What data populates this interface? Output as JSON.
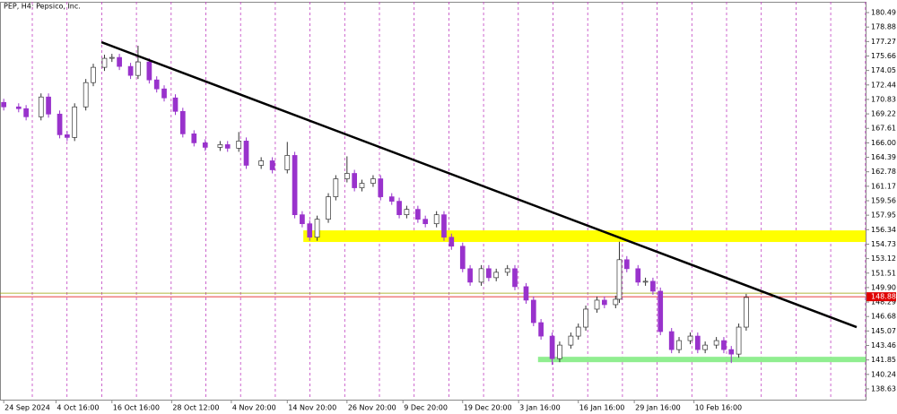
{
  "chart_data": {
    "type": "candlestick",
    "title": "PEP, H4: Pepsico, Inc.",
    "x": [
      0,
      4,
      6,
      10,
      12,
      15,
      17,
      19,
      22,
      24,
      27,
      29,
      31,
      34,
      36,
      39,
      41,
      43,
      46,
      48,
      51,
      54,
      58,
      60,
      63,
      65,
      69,
      72,
      76,
      78,
      80,
      82,
      84,
      87,
      89,
      92,
      94,
      96,
      99,
      101,
      104,
      106,
      108,
      111,
      113,
      116,
      118,
      120,
      123,
      125,
      128,
      130,
      132,
      135,
      137,
      140,
      142,
      144,
      147,
      149,
      152,
      154,
      156,
      159,
      161,
      164,
      165,
      167,
      170,
      172,
      174,
      176,
      179,
      181,
      184,
      186,
      188,
      191,
      193,
      195,
      197,
      199
    ],
    "open": [
      170.5,
      170.0,
      169.8,
      168.9,
      171.1,
      169.2,
      166.9,
      166.6,
      170.0,
      172.7,
      174.4,
      175.4,
      175.5,
      174.5,
      173.5,
      175.0,
      173.0,
      172.0,
      171.0,
      169.5,
      167.0,
      166.0,
      165.5,
      165.8,
      165.4,
      166.2,
      163.5,
      164.0,
      163.0,
      164.6,
      158.0,
      157.0,
      155.5,
      157.5,
      160.0,
      162.0,
      162.6,
      161.0,
      161.5,
      162.0,
      160.0,
      159.5,
      158.0,
      158.6,
      157.5,
      157.0,
      158.0,
      155.5,
      154.5,
      152.0,
      150.5,
      152.0,
      151.0,
      151.6,
      152.0,
      150.0,
      148.5,
      146.0,
      144.5,
      142.0,
      143.5,
      144.5,
      145.5,
      147.5,
      148.5,
      148.0,
      148.6,
      153.0,
      152.0,
      150.5,
      150.6,
      149.5,
      145.0,
      143.0,
      144.0,
      144.5,
      143.0,
      143.5,
      144.0,
      143.0,
      142.5,
      145.5
    ],
    "high": [
      170.9,
      170.4,
      170.2,
      171.5,
      171.5,
      169.6,
      167.3,
      170.4,
      173.1,
      174.8,
      175.8,
      175.9,
      175.9,
      174.9,
      176.8,
      175.4,
      173.4,
      172.4,
      171.4,
      169.9,
      167.4,
      166.4,
      166.2,
      166.2,
      167.2,
      166.6,
      164.4,
      164.4,
      166.1,
      165.0,
      158.4,
      157.4,
      157.9,
      160.4,
      162.4,
      164.5,
      163.0,
      161.9,
      162.4,
      162.4,
      160.4,
      159.9,
      159.0,
      159.0,
      157.9,
      158.4,
      158.4,
      155.9,
      154.9,
      152.4,
      152.4,
      152.4,
      152.0,
      152.4,
      152.4,
      150.4,
      148.9,
      146.4,
      144.9,
      143.9,
      144.9,
      145.9,
      147.9,
      148.9,
      148.9,
      149.0,
      155.0,
      153.4,
      152.4,
      151.0,
      151.0,
      149.9,
      145.4,
      144.4,
      144.9,
      144.9,
      143.9,
      144.4,
      144.4,
      143.4,
      145.9,
      149.2
    ],
    "low": [
      169.6,
      169.4,
      168.5,
      168.5,
      168.8,
      166.5,
      166.2,
      166.2,
      169.6,
      172.3,
      174.0,
      175.0,
      174.1,
      173.1,
      173.1,
      172.6,
      171.6,
      170.6,
      169.1,
      166.6,
      165.6,
      165.1,
      165.1,
      165.0,
      165.0,
      163.1,
      163.1,
      162.6,
      162.6,
      157.6,
      156.6,
      155.1,
      155.1,
      157.1,
      159.6,
      161.6,
      160.6,
      160.6,
      161.1,
      159.6,
      159.1,
      157.6,
      157.6,
      157.1,
      156.6,
      156.6,
      155.1,
      154.1,
      151.6,
      150.1,
      150.1,
      150.6,
      150.6,
      151.2,
      149.6,
      148.1,
      145.6,
      144.1,
      141.3,
      141.6,
      143.1,
      144.1,
      145.1,
      147.1,
      147.6,
      147.6,
      148.2,
      151.6,
      150.1,
      150.1,
      149.1,
      144.6,
      142.6,
      142.6,
      143.6,
      142.6,
      142.6,
      143.1,
      142.6,
      141.5,
      142.1,
      145.1
    ],
    "close": [
      170.0,
      169.8,
      168.9,
      171.1,
      169.2,
      166.9,
      166.6,
      170.0,
      172.7,
      174.4,
      175.4,
      175.5,
      174.5,
      173.5,
      175.0,
      173.0,
      172.0,
      171.0,
      169.5,
      167.0,
      166.0,
      165.5,
      165.8,
      165.4,
      166.2,
      163.5,
      164.0,
      163.0,
      164.6,
      158.0,
      157.0,
      155.5,
      157.5,
      160.0,
      162.0,
      162.6,
      161.0,
      161.5,
      162.0,
      160.0,
      159.5,
      158.0,
      158.6,
      157.5,
      157.0,
      158.0,
      155.5,
      154.5,
      152.0,
      150.5,
      152.0,
      151.0,
      151.6,
      152.0,
      150.0,
      148.5,
      146.0,
      144.5,
      142.0,
      143.5,
      144.5,
      145.5,
      147.5,
      148.5,
      148.0,
      148.6,
      153.0,
      152.0,
      150.5,
      150.6,
      149.5,
      145.0,
      143.0,
      144.0,
      144.5,
      143.0,
      143.5,
      144.0,
      143.0,
      142.5,
      145.5,
      148.8
    ],
    "up_color": "#ffffff",
    "down_color": "#9932cc",
    "xlim": [
      -1,
      231
    ],
    "xticks": [
      {
        "value": 0,
        "label": "24 Sep 2024"
      },
      {
        "value": 14,
        "label": "4 Oct 16:00"
      },
      {
        "value": 29,
        "label": "16 Oct 16:00"
      },
      {
        "value": 45,
        "label": "28 Oct 12:00"
      },
      {
        "value": 61,
        "label": "4 Nov 20:00"
      },
      {
        "value": 76,
        "label": "14 Nov 20:00"
      },
      {
        "value": 92,
        "label": "26 Nov 20:00"
      },
      {
        "value": 107,
        "label": "9 Dec 20:00"
      },
      {
        "value": 123,
        "label": "19 Dec 20:00"
      },
      {
        "value": 138,
        "label": "3 Jan 16:00"
      },
      {
        "value": 154,
        "label": "16 Jan 16:00"
      },
      {
        "value": 169,
        "label": "29 Jan 16:00"
      },
      {
        "value": 185,
        "label": "10 Feb 16:00"
      }
    ],
    "ylim": [
      137.43,
      181.69
    ],
    "yticks": [
      180.49,
      178.88,
      177.27,
      175.66,
      174.05,
      172.44,
      170.83,
      169.22,
      167.61,
      {
        "value": 166,
        "label": "166.00"
      },
      164.39,
      162.78,
      161.17,
      159.56,
      157.95,
      156.34,
      154.73,
      153.12,
      151.51,
      {
        "value": 149.9,
        "label": "149.90"
      },
      148.29,
      146.68,
      145.07,
      143.46,
      141.85,
      140.24,
      138.63
    ],
    "last_price": 148.88,
    "last_price_color": "#e00000",
    "ask_price": 149.28,
    "ask_color": "#9aa000",
    "trendline": {
      "x": [
        26.2,
        228.6
      ],
      "y": [
        177.2,
        145.5
      ],
      "color": "#000000"
    },
    "zones": [
      {
        "from": 154.97,
        "to": 156.26,
        "start": 80.3,
        "color": "#ffff00"
      },
      {
        "from": 141.6,
        "to": 142.2,
        "start": 143.2,
        "color": "#90ee90"
      }
    ]
  }
}
